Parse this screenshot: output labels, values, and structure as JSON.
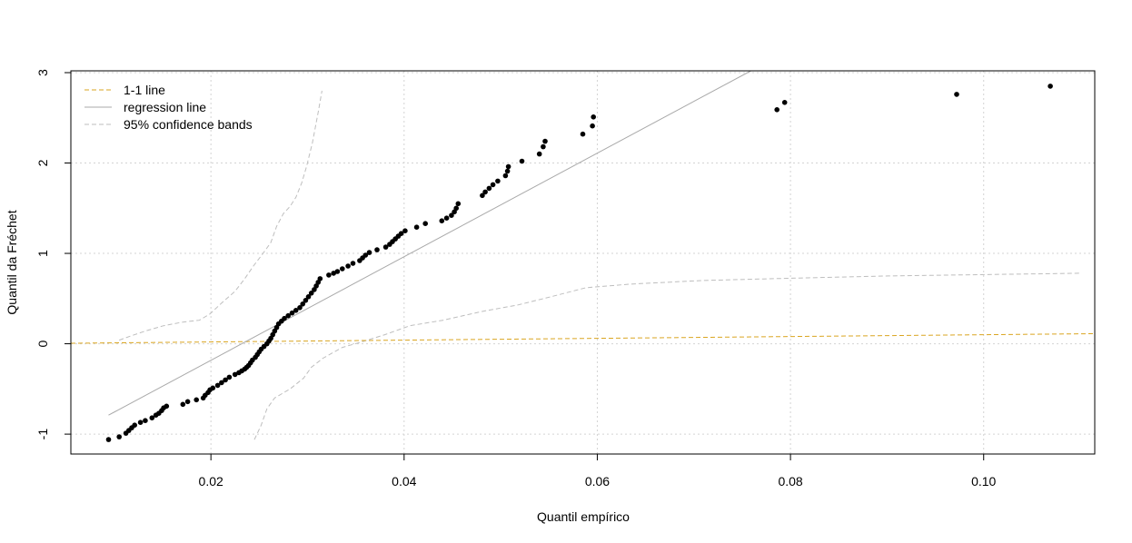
{
  "chart_data": {
    "type": "scatter",
    "title": "",
    "xlabel": "Quantil empírico",
    "ylabel": "Quantil da Fréchet",
    "xlim": [
      0.0055,
      0.1115
    ],
    "ylim": [
      -1.22,
      3.02
    ],
    "x_ticks": [
      0.02,
      0.04,
      0.06,
      0.08,
      0.1
    ],
    "x_tick_labels": [
      "0.02",
      "0.04",
      "0.06",
      "0.08",
      "0.10"
    ],
    "y_ticks": [
      -1,
      0,
      1,
      2,
      3
    ],
    "y_tick_labels": [
      "-1",
      "0",
      "1",
      "2",
      "3"
    ],
    "grid": true,
    "legend_position": "top-left",
    "legend": [
      {
        "label": "1-1 line",
        "color": "#DAA520",
        "style": "dashed"
      },
      {
        "label": "regression line",
        "color": "#A9A9A9",
        "style": "solid"
      },
      {
        "label": "95% confidence bands",
        "color": "#BEBEBE",
        "style": "dashed"
      }
    ],
    "points_color": "#000000",
    "points": [
      [
        0.0094,
        -1.06
      ],
      [
        0.0105,
        -1.03
      ],
      [
        0.0112,
        -0.99
      ],
      [
        0.0115,
        -0.96
      ],
      [
        0.0118,
        -0.93
      ],
      [
        0.0121,
        -0.9
      ],
      [
        0.0127,
        -0.87
      ],
      [
        0.0132,
        -0.85
      ],
      [
        0.0139,
        -0.82
      ],
      [
        0.0143,
        -0.79
      ],
      [
        0.0146,
        -0.77
      ],
      [
        0.0149,
        -0.74
      ],
      [
        0.0151,
        -0.71
      ],
      [
        0.0154,
        -0.69
      ],
      [
        0.0171,
        -0.67
      ],
      [
        0.0176,
        -0.64
      ],
      [
        0.0185,
        -0.62
      ],
      [
        0.0192,
        -0.6
      ],
      [
        0.0194,
        -0.57
      ],
      [
        0.0197,
        -0.54
      ],
      [
        0.0199,
        -0.51
      ],
      [
        0.0202,
        -0.49
      ],
      [
        0.0207,
        -0.46
      ],
      [
        0.0211,
        -0.43
      ],
      [
        0.0215,
        -0.4
      ],
      [
        0.0219,
        -0.37
      ],
      [
        0.0225,
        -0.34
      ],
      [
        0.0229,
        -0.32
      ],
      [
        0.0232,
        -0.3
      ],
      [
        0.0235,
        -0.28
      ],
      [
        0.0237,
        -0.26
      ],
      [
        0.0239,
        -0.24
      ],
      [
        0.0241,
        -0.21
      ],
      [
        0.0243,
        -0.18
      ],
      [
        0.0246,
        -0.15
      ],
      [
        0.0248,
        -0.12
      ],
      [
        0.025,
        -0.09
      ],
      [
        0.0252,
        -0.06
      ],
      [
        0.0255,
        -0.03
      ],
      [
        0.0258,
        0.0
      ],
      [
        0.026,
        0.03
      ],
      [
        0.0262,
        0.06
      ],
      [
        0.0264,
        0.1
      ],
      [
        0.0266,
        0.14
      ],
      [
        0.0268,
        0.18
      ],
      [
        0.027,
        0.22
      ],
      [
        0.0273,
        0.25
      ],
      [
        0.0276,
        0.28
      ],
      [
        0.028,
        0.31
      ],
      [
        0.0284,
        0.34
      ],
      [
        0.0288,
        0.37
      ],
      [
        0.0292,
        0.4
      ],
      [
        0.0295,
        0.44
      ],
      [
        0.0298,
        0.48
      ],
      [
        0.0301,
        0.52
      ],
      [
        0.0304,
        0.56
      ],
      [
        0.0307,
        0.6
      ],
      [
        0.0309,
        0.64
      ],
      [
        0.0311,
        0.68
      ],
      [
        0.0313,
        0.72
      ],
      [
        0.0322,
        0.76
      ],
      [
        0.0327,
        0.78
      ],
      [
        0.0331,
        0.8
      ],
      [
        0.0336,
        0.83
      ],
      [
        0.0342,
        0.86
      ],
      [
        0.0347,
        0.89
      ],
      [
        0.0354,
        0.92
      ],
      [
        0.0357,
        0.95
      ],
      [
        0.036,
        0.98
      ],
      [
        0.0364,
        1.01
      ],
      [
        0.0372,
        1.04
      ],
      [
        0.0381,
        1.07
      ],
      [
        0.0385,
        1.1
      ],
      [
        0.0388,
        1.13
      ],
      [
        0.0391,
        1.16
      ],
      [
        0.0394,
        1.19
      ],
      [
        0.0397,
        1.22
      ],
      [
        0.0401,
        1.25
      ],
      [
        0.0413,
        1.29
      ],
      [
        0.0422,
        1.33
      ],
      [
        0.0439,
        1.36
      ],
      [
        0.0444,
        1.39
      ],
      [
        0.0449,
        1.42
      ],
      [
        0.0452,
        1.46
      ],
      [
        0.0454,
        1.5
      ],
      [
        0.0456,
        1.55
      ],
      [
        0.0481,
        1.64
      ],
      [
        0.0484,
        1.68
      ],
      [
        0.0488,
        1.72
      ],
      [
        0.0492,
        1.76
      ],
      [
        0.0497,
        1.8
      ],
      [
        0.0505,
        1.86
      ],
      [
        0.0507,
        1.91
      ],
      [
        0.0508,
        1.96
      ],
      [
        0.0522,
        2.02
      ],
      [
        0.054,
        2.1
      ],
      [
        0.0544,
        2.18
      ],
      [
        0.0546,
        2.24
      ],
      [
        0.0585,
        2.32
      ],
      [
        0.0595,
        2.41
      ],
      [
        0.0596,
        2.51
      ],
      [
        0.0786,
        2.59
      ],
      [
        0.0794,
        2.67
      ],
      [
        0.0972,
        2.76
      ],
      [
        0.1069,
        2.85
      ]
    ],
    "one_one_line": {
      "x": [
        0.0055,
        0.1115
      ],
      "y": [
        0.0055,
        0.1115
      ]
    },
    "regression_line": {
      "x": [
        0.0094,
        0.0759
      ],
      "y": [
        -0.79,
        3.02
      ]
    },
    "upper_band": [
      [
        0.0105,
        0.04
      ],
      [
        0.0118,
        0.09
      ],
      [
        0.0132,
        0.14
      ],
      [
        0.0151,
        0.2
      ],
      [
        0.0171,
        0.24
      ],
      [
        0.0188,
        0.26
      ],
      [
        0.0199,
        0.33
      ],
      [
        0.0211,
        0.45
      ],
      [
        0.0225,
        0.58
      ],
      [
        0.0235,
        0.72
      ],
      [
        0.0244,
        0.86
      ],
      [
        0.0254,
        1.0
      ],
      [
        0.0262,
        1.12
      ],
      [
        0.0268,
        1.3
      ],
      [
        0.0275,
        1.44
      ],
      [
        0.0282,
        1.52
      ],
      [
        0.0288,
        1.62
      ],
      [
        0.0294,
        1.78
      ],
      [
        0.0299,
        1.96
      ],
      [
        0.0305,
        2.22
      ],
      [
        0.0311,
        2.56
      ],
      [
        0.0315,
        2.8
      ]
    ],
    "lower_band": [
      [
        0.0245,
        -1.06
      ],
      [
        0.0252,
        -0.9
      ],
      [
        0.0258,
        -0.72
      ],
      [
        0.0266,
        -0.6
      ],
      [
        0.0282,
        -0.5
      ],
      [
        0.0296,
        -0.38
      ],
      [
        0.0304,
        -0.26
      ],
      [
        0.0316,
        -0.16
      ],
      [
        0.0336,
        -0.04
      ],
      [
        0.0356,
        0.02
      ],
      [
        0.038,
        0.1
      ],
      [
        0.0406,
        0.2
      ],
      [
        0.044,
        0.26
      ],
      [
        0.0482,
        0.36
      ],
      [
        0.0518,
        0.43
      ],
      [
        0.0552,
        0.52
      ],
      [
        0.0588,
        0.62
      ],
      [
        0.0634,
        0.66
      ],
      [
        0.0709,
        0.7
      ],
      [
        0.0782,
        0.72
      ],
      [
        0.0901,
        0.75
      ],
      [
        0.1101,
        0.78
      ]
    ]
  }
}
